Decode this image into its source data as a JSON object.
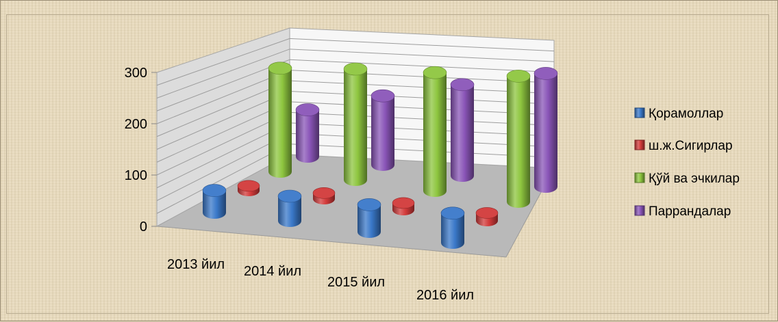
{
  "chart_data": {
    "type": "bar",
    "style": "3d-cylinder",
    "categories": [
      "2013 йил",
      "2014 йил",
      "2015 йил",
      "2016 йил"
    ],
    "series": [
      {
        "name": "Қорамоллар",
        "color": "#3a78c9",
        "values": [
          45,
          50,
          55,
          60
        ]
      },
      {
        "name": "ш.ж.Сигирлар",
        "color": "#d23a3a",
        "values": [
          10,
          12,
          14,
          16
        ]
      },
      {
        "name": "Қўй ва эчкилар",
        "color": "#8ec63f",
        "values": [
          210,
          225,
          240,
          255
        ]
      },
      {
        "name": "Паррандалар",
        "color": "#8a55b8",
        "values": [
          95,
          140,
          185,
          230
        ]
      }
    ],
    "y_ticks": [
      "0",
      "100",
      "200",
      "300"
    ],
    "ylim": [
      0,
      300
    ],
    "legend_position": "right",
    "grid": true
  }
}
